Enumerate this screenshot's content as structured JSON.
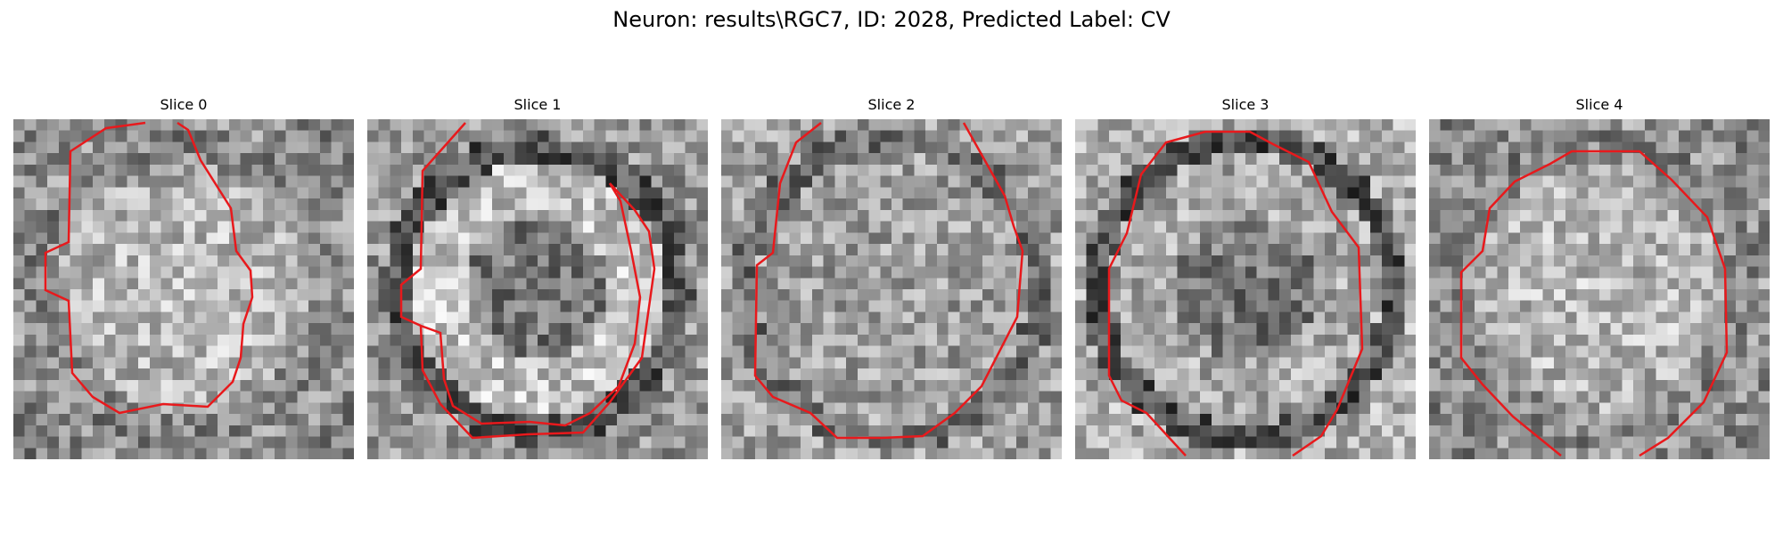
{
  "figure": {
    "title": "Neuron: results\\RGC7, ID: 2028, Predicted Label: CV"
  },
  "panels": [
    {
      "title": "Slice 0",
      "contour_color": "#e8191c",
      "pattern": "bright-center"
    },
    {
      "title": "Slice 1",
      "contour_color": "#e8191c",
      "pattern": "ring"
    },
    {
      "title": "Slice 2",
      "contour_color": "#e8191c",
      "pattern": "uniform"
    },
    {
      "title": "Slice 3",
      "contour_color": "#e8191c",
      "pattern": "dark-center"
    },
    {
      "title": "Slice 4",
      "contour_color": "#e8191c",
      "pattern": "bright-center"
    }
  ]
}
